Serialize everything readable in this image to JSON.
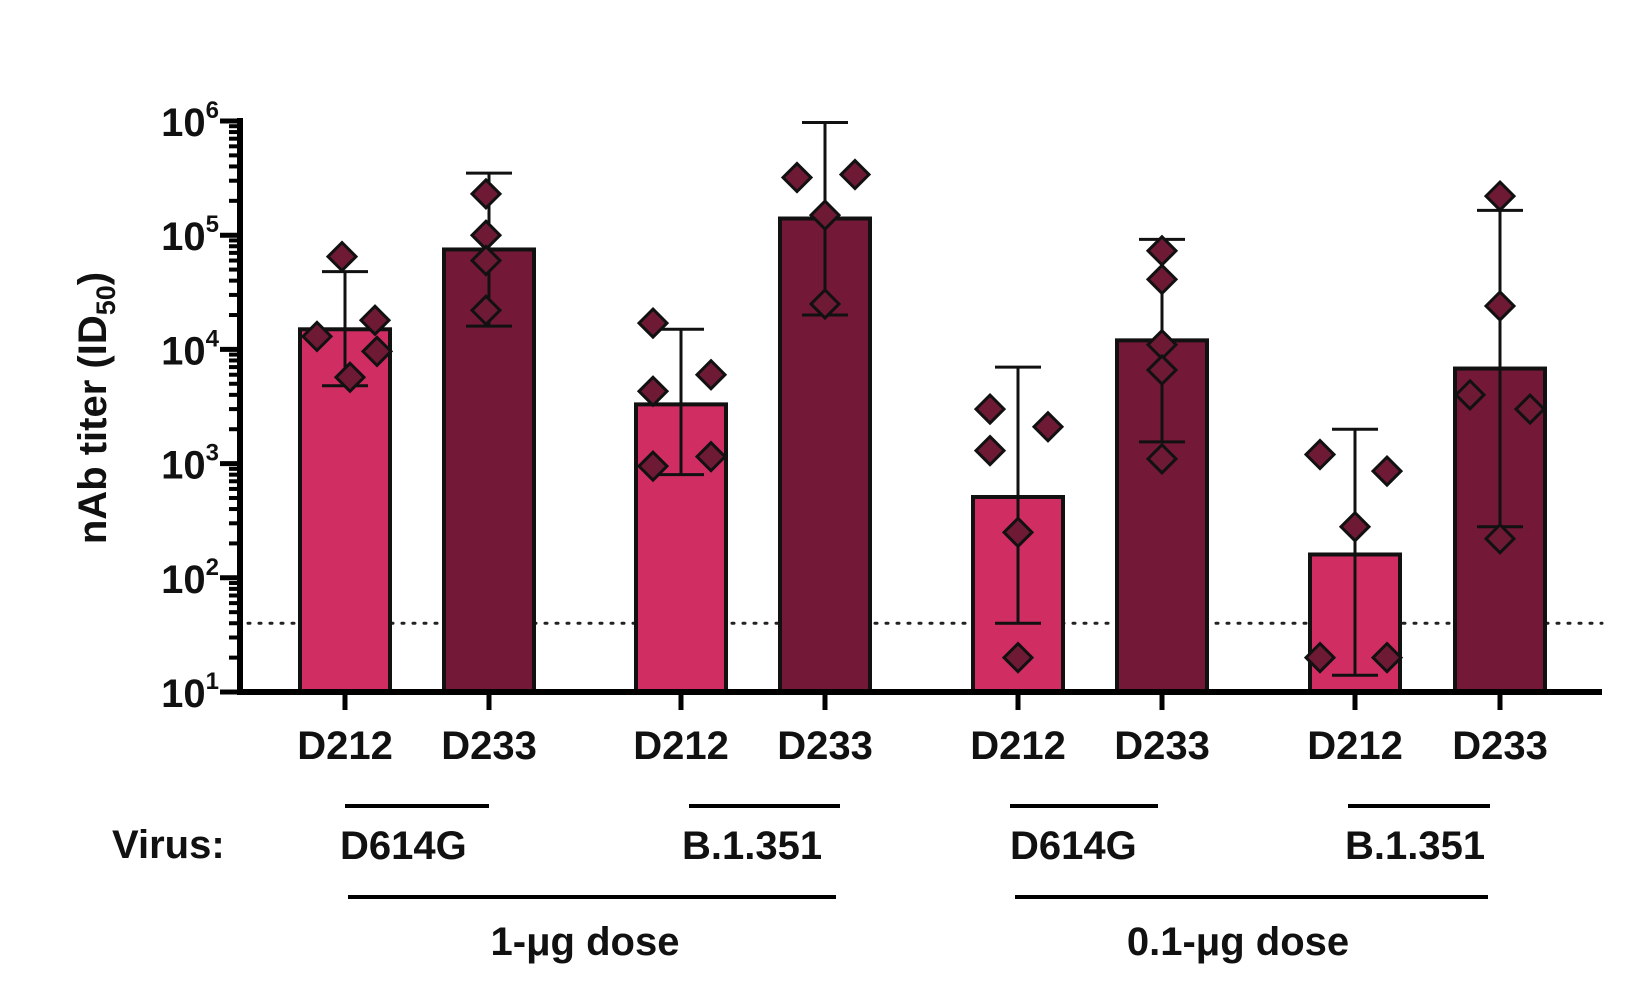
{
  "chart_data": {
    "type": "bar",
    "ylabel": "nAb titer (ID",
    "ylabel_sub": "50",
    "ylabel_close": ")",
    "yscale": "log",
    "ylim": [
      10,
      1000000
    ],
    "ytick_base": "10",
    "yticks": [
      {
        "value": 10,
        "exp": "1"
      },
      {
        "value": 100,
        "exp": "2"
      },
      {
        "value": 1000,
        "exp": "3"
      },
      {
        "value": 10000,
        "exp": "4"
      },
      {
        "value": 100000,
        "exp": "5"
      },
      {
        "value": 1000000,
        "exp": "6"
      }
    ],
    "detection_limit": 40,
    "colors": {
      "D212": "#d02e62",
      "D233": "#741838",
      "point": "#6e1a35"
    },
    "categories": [
      "D212",
      "D233",
      "D212",
      "D233",
      "D212",
      "D233",
      "D212",
      "D233"
    ],
    "bars": [
      {
        "label": "D212",
        "series": "D212",
        "value": 15000,
        "err_low": 4800,
        "err_high": 48000,
        "points": [
          65000,
          13000,
          18000,
          5700,
          9600
        ]
      },
      {
        "label": "D233",
        "series": "D233",
        "value": 75000,
        "err_low": 16000,
        "err_high": 350000,
        "points": [
          230000,
          100000,
          60000,
          22000
        ]
      },
      {
        "label": "D212",
        "series": "D212",
        "value": 3300,
        "err_low": 800,
        "err_high": 15000,
        "points": [
          17000,
          4300,
          6000,
          950,
          1150
        ]
      },
      {
        "label": "D233",
        "series": "D233",
        "value": 140000,
        "err_low": 20000,
        "err_high": 970000,
        "points": [
          320000,
          340000,
          150000,
          25000
        ]
      },
      {
        "label": "D212",
        "series": "D212",
        "value": 510,
        "err_low": 40,
        "err_high": 7000,
        "points": [
          3000,
          2100,
          1300,
          250,
          20
        ]
      },
      {
        "label": "D233",
        "series": "D233",
        "value": 12000,
        "err_low": 1550,
        "err_high": 92000,
        "points": [
          73000,
          41000,
          11000,
          6600,
          1100
        ]
      },
      {
        "label": "D212",
        "series": "D212",
        "value": 160,
        "err_low": 14,
        "err_high": 2000,
        "points": [
          1200,
          860,
          280,
          20,
          20
        ]
      },
      {
        "label": "D233",
        "series": "D233",
        "value": 6800,
        "err_low": 280,
        "err_high": 165000,
        "points": [
          220000,
          24000,
          4000,
          3000,
          220
        ]
      }
    ],
    "virus_label": "Virus:",
    "virus_groups": [
      "D614G",
      "B.1.351",
      "D614G",
      "B.1.351"
    ],
    "dose_groups": [
      "1-μg dose",
      "0.1-μg dose"
    ]
  }
}
